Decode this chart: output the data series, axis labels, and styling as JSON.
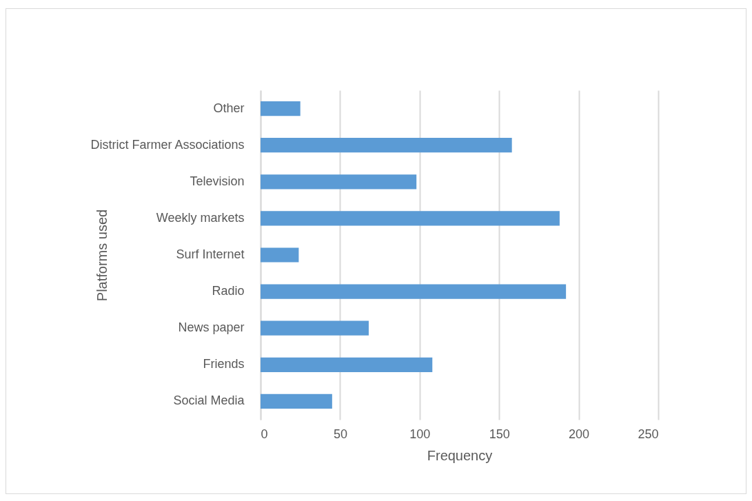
{
  "chart_data": {
    "type": "bar",
    "orientation": "horizontal",
    "xlabel": "Frequency",
    "ylabel": "Platforms  used",
    "categories": [
      "Other",
      "District Farmer Associations",
      "Television",
      "Weekly markets",
      "Surf Internet",
      "Radio",
      "News paper",
      "Friends",
      "Social Media"
    ],
    "values": [
      25,
      158,
      98,
      188,
      24,
      192,
      68,
      108,
      45
    ],
    "color": "#5b9bd5",
    "xlim": [
      0,
      250
    ],
    "xticks": [
      0,
      50,
      100,
      150,
      200,
      250
    ],
    "grid": "x"
  }
}
